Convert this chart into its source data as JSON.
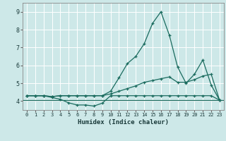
{
  "title": "",
  "xlabel": "Humidex (Indice chaleur)",
  "xlim": [
    -0.5,
    23.5
  ],
  "ylim": [
    3.5,
    9.5
  ],
  "xticks": [
    0,
    1,
    2,
    3,
    4,
    5,
    6,
    7,
    8,
    9,
    10,
    11,
    12,
    13,
    14,
    15,
    16,
    17,
    18,
    19,
    20,
    21,
    22,
    23
  ],
  "yticks": [
    4,
    5,
    6,
    7,
    8,
    9
  ],
  "background_color": "#cde8e8",
  "grid_color": "#ffffff",
  "line_color": "#1a6b5e",
  "hline_y": 4.05,
  "line1_x": [
    0,
    1,
    2,
    3,
    4,
    5,
    6,
    7,
    8,
    9,
    10,
    11,
    12,
    13,
    14,
    15,
    16,
    17,
    18,
    19,
    20,
    21,
    22,
    23
  ],
  "line1_y": [
    4.3,
    4.3,
    4.3,
    4.2,
    4.1,
    3.9,
    3.78,
    3.78,
    3.72,
    3.88,
    4.3,
    4.3,
    4.3,
    4.3,
    4.3,
    4.3,
    4.3,
    4.3,
    4.3,
    4.3,
    4.3,
    4.3,
    4.3,
    4.05
  ],
  "line2_x": [
    0,
    1,
    2,
    3,
    4,
    5,
    6,
    7,
    8,
    9,
    10,
    11,
    12,
    13,
    14,
    15,
    16,
    17,
    18,
    19,
    20,
    21,
    22,
    23
  ],
  "line2_y": [
    4.3,
    4.3,
    4.3,
    4.25,
    4.3,
    4.3,
    4.3,
    4.3,
    4.3,
    4.3,
    4.4,
    4.55,
    4.7,
    4.85,
    5.05,
    5.15,
    5.25,
    5.35,
    5.05,
    5.05,
    5.2,
    5.4,
    5.5,
    4.05
  ],
  "line3_x": [
    0,
    1,
    2,
    3,
    4,
    5,
    6,
    7,
    8,
    9,
    10,
    11,
    12,
    13,
    14,
    15,
    16,
    17,
    18,
    19,
    20,
    21,
    22,
    23
  ],
  "line3_y": [
    4.3,
    4.3,
    4.3,
    4.25,
    4.3,
    4.3,
    4.3,
    4.3,
    4.3,
    4.3,
    4.55,
    5.3,
    6.1,
    6.5,
    7.2,
    8.35,
    9.0,
    7.7,
    5.9,
    5.0,
    5.5,
    6.3,
    4.9,
    4.05
  ]
}
